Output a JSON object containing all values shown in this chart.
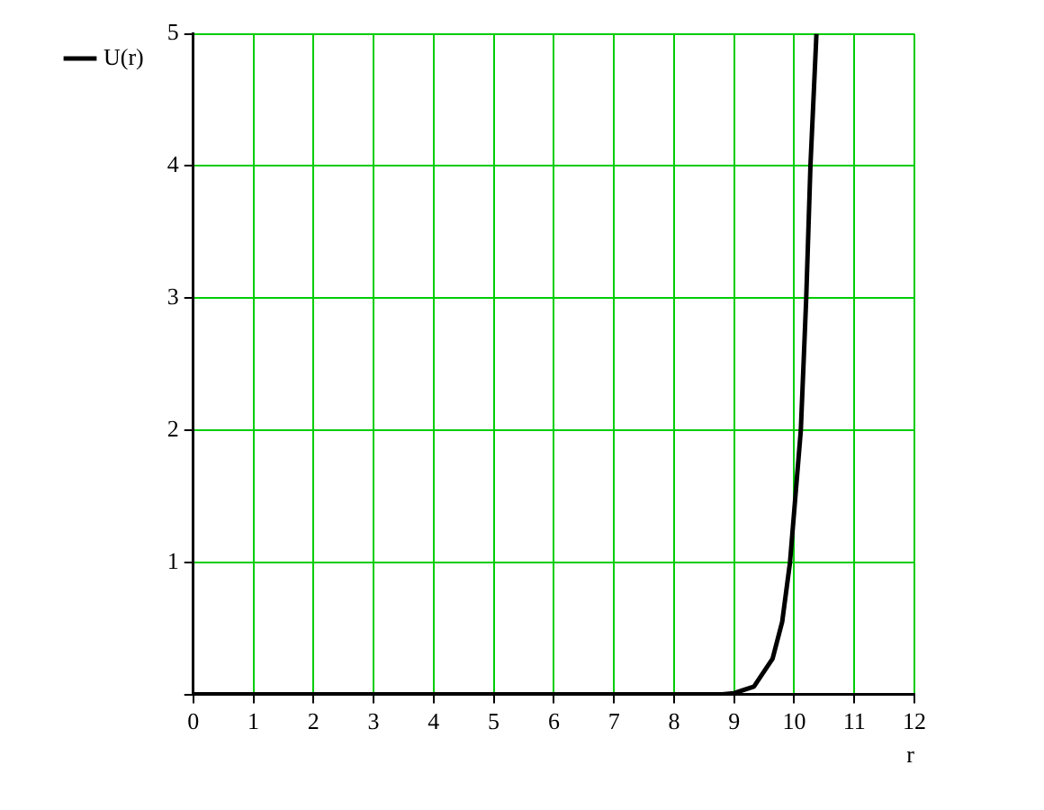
{
  "chart_data": {
    "type": "line",
    "xlabel": "r",
    "legend": "top left",
    "grid": true,
    "marker": "none",
    "line_style": "solid",
    "xlim": [
      0,
      12
    ],
    "xticks": [
      0,
      1,
      2,
      3,
      4,
      5,
      6,
      7,
      8,
      9,
      10,
      11,
      12
    ],
    "ylim": [
      0,
      5
    ],
    "yticks": [
      {
        "value": 0,
        "label": null
      },
      1,
      2,
      3,
      4,
      5
    ],
    "series": [
      {
        "name": "U(r)",
        "color": "#000000",
        "x": [
          0,
          8.8,
          9.0,
          9.33,
          9.64,
          9.8,
          9.93,
          10.02,
          10.11,
          10.2,
          10.27,
          10.37
        ],
        "values": [
          0,
          0,
          0.01,
          0.06,
          0.27,
          0.55,
          1,
          1.5,
          2,
          3,
          4,
          5
        ]
      }
    ]
  }
}
